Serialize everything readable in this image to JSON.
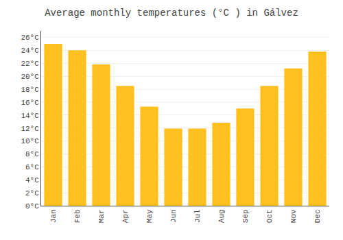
{
  "chart_data": {
    "type": "bar",
    "title": "Average monthly temperatures (°C ) in Gálvez",
    "categories": [
      "Jan",
      "Feb",
      "Mar",
      "Apr",
      "May",
      "Jun",
      "Jul",
      "Aug",
      "Sep",
      "Oct",
      "Nov",
      "Dec"
    ],
    "values": [
      25.0,
      24.0,
      21.8,
      18.5,
      15.3,
      11.9,
      11.9,
      12.8,
      15.0,
      18.5,
      21.2,
      23.8
    ],
    "color": "#FFC020",
    "ylim": [
      0,
      27
    ],
    "yticks": [
      {
        "value": 0,
        "label": "0°C"
      },
      {
        "value": 2,
        "label": "2°C"
      },
      {
        "value": 4,
        "label": "4°C"
      },
      {
        "value": 6,
        "label": "6°C"
      },
      {
        "value": 8,
        "label": "8°C"
      },
      {
        "value": 10,
        "label": "10°C"
      },
      {
        "value": 12,
        "label": "12°C"
      },
      {
        "value": 14,
        "label": "14°C"
      },
      {
        "value": 16,
        "label": "16°C"
      },
      {
        "value": 18,
        "label": "18°C"
      },
      {
        "value": 20,
        "label": "20°C"
      },
      {
        "value": 22,
        "label": "22°C"
      },
      {
        "value": 24,
        "label": "24°C"
      },
      {
        "value": 26,
        "label": "26°C"
      }
    ],
    "grid": true
  }
}
